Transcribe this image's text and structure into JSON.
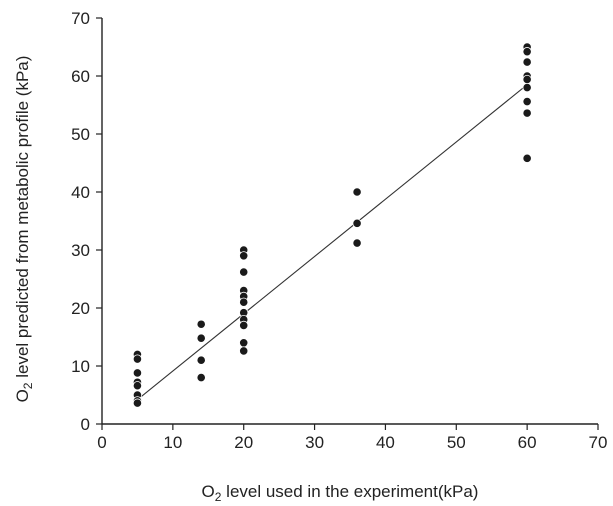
{
  "chart_data": {
    "type": "scatter",
    "title": "",
    "xlabel": {
      "prefix": "O",
      "sub": "2",
      "rest": " level used in the experiment(kPa)"
    },
    "ylabel": {
      "prefix": "O",
      "sub": "2",
      "rest": " level predicted from metabolic profile (kPa)"
    },
    "xlim": [
      0,
      70
    ],
    "ylim": [
      0,
      70
    ],
    "xticks": [
      0,
      10,
      20,
      30,
      40,
      50,
      60,
      70
    ],
    "yticks": [
      0,
      10,
      20,
      30,
      40,
      50,
      60,
      70
    ],
    "grid": false,
    "legend": "none",
    "series": [
      {
        "points": [
          [
            5,
            12.0
          ],
          [
            5,
            11.2
          ],
          [
            5,
            8.8
          ],
          [
            5,
            7.2
          ],
          [
            5,
            6.6
          ],
          [
            5,
            5.0
          ],
          [
            5,
            4.0
          ],
          [
            5,
            3.6
          ],
          [
            14,
            17.2
          ],
          [
            14,
            14.8
          ],
          [
            14,
            11.0
          ],
          [
            14,
            8.0
          ],
          [
            20,
            30.0
          ],
          [
            20,
            29.0
          ],
          [
            20,
            26.2
          ],
          [
            20,
            23.0
          ],
          [
            20,
            22.0
          ],
          [
            20,
            21.0
          ],
          [
            20,
            19.2
          ],
          [
            20,
            18.0
          ],
          [
            20,
            17.0
          ],
          [
            20,
            14.0
          ],
          [
            20,
            12.6
          ],
          [
            36,
            40.0
          ],
          [
            36,
            34.6
          ],
          [
            36,
            31.2
          ],
          [
            60,
            65.0
          ],
          [
            60,
            64.2
          ],
          [
            60,
            62.4
          ],
          [
            60,
            60.0
          ],
          [
            60,
            59.4
          ],
          [
            60,
            58.0
          ],
          [
            60,
            55.6
          ],
          [
            60,
            53.6
          ],
          [
            60,
            45.8
          ]
        ]
      }
    ],
    "trendline": {
      "x_start": 5,
      "y_start": 4.2,
      "x_end": 60,
      "y_end": 58.5
    }
  },
  "colors": {
    "point": "#1a1a1a",
    "line": "#333333",
    "axis": "#222222"
  }
}
